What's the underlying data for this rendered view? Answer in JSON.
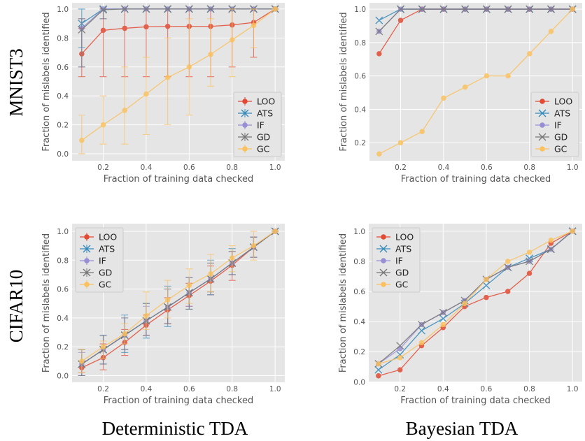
{
  "row_labels": [
    "MNIST3",
    "CIFAR10"
  ],
  "column_labels": [
    "Deterministic TDA",
    "Bayesian TDA"
  ],
  "series_styles": {
    "LOO": {
      "color": "#E24A33",
      "marker": "circle"
    },
    "ATS": {
      "color": "#348ABD",
      "marker": "x"
    },
    "IF": {
      "color": "#988ED5",
      "marker": "circle"
    },
    "GD": {
      "color": "#777777",
      "marker": "x"
    },
    "GC": {
      "color": "#FBC15E",
      "marker": "circle"
    }
  },
  "style": {
    "background": "#E5E5E5",
    "grid": "#FFFFFF"
  },
  "chart_data": [
    {
      "type": "line",
      "row": "MNIST3",
      "column": "Deterministic TDA",
      "xlabel": "Fraction of training data checked",
      "ylabel": "Fraction of mislabels identified",
      "xlim": [
        0.055,
        1.045
      ],
      "ylim": [
        -0.048,
        1.043
      ],
      "xticks": [
        0.2,
        0.4,
        0.6,
        0.8,
        1.0
      ],
      "xtick_labels": [
        "0.2",
        "0.4",
        "0.6",
        "0.8",
        "1.0"
      ],
      "yticks": [
        0.0,
        0.2,
        0.4,
        0.6,
        0.8,
        1.0
      ],
      "ytick_labels": [
        "0.0",
        "0.2",
        "0.4",
        "0.6",
        "0.8",
        "1.0"
      ],
      "grid": true,
      "legend": "lower right",
      "error_bars": true,
      "x": [
        0.1,
        0.2,
        0.3,
        0.4,
        0.5,
        0.6,
        0.7,
        0.8,
        0.9,
        1.0
      ],
      "series": [
        {
          "name": "LOO",
          "values": [
            0.69,
            0.853,
            0.867,
            0.877,
            0.88,
            0.88,
            0.88,
            0.89,
            0.907,
            1.0
          ],
          "lower": [
            0.533,
            0.533,
            0.533,
            0.533,
            0.533,
            0.533,
            0.533,
            0.6,
            0.667,
            1.0
          ],
          "upper": [
            0.867,
            1.0,
            1.0,
            1.0,
            1.0,
            1.0,
            1.0,
            1.0,
            1.0,
            1.0
          ]
        },
        {
          "name": "ATS",
          "values": [
            0.9,
            1.0,
            1.0,
            1.0,
            1.0,
            1.0,
            1.0,
            1.0,
            1.0,
            1.0
          ],
          "lower": [
            0.733,
            1.0,
            1.0,
            1.0,
            1.0,
            1.0,
            1.0,
            1.0,
            1.0,
            1.0
          ],
          "upper": [
            1.0,
            1.0,
            1.0,
            1.0,
            1.0,
            1.0,
            1.0,
            1.0,
            1.0,
            1.0
          ]
        },
        {
          "name": "IF",
          "values": [
            0.867,
            1.0,
            1.0,
            1.0,
            1.0,
            1.0,
            1.0,
            1.0,
            1.0,
            1.0
          ],
          "lower": [
            0.6,
            0.933,
            1.0,
            1.0,
            1.0,
            1.0,
            1.0,
            1.0,
            1.0,
            1.0
          ],
          "upper": [
            0.933,
            1.0,
            1.0,
            1.0,
            1.0,
            1.0,
            1.0,
            1.0,
            1.0,
            1.0
          ]
        },
        {
          "name": "GD",
          "values": [
            0.857,
            0.995,
            1.0,
            1.0,
            1.0,
            1.0,
            1.0,
            1.0,
            1.0,
            1.0
          ],
          "lower": [
            0.6,
            0.933,
            1.0,
            1.0,
            1.0,
            1.0,
            1.0,
            1.0,
            1.0,
            1.0
          ],
          "upper": [
            0.933,
            1.0,
            1.0,
            1.0,
            1.0,
            1.0,
            1.0,
            1.0,
            1.0,
            1.0
          ]
        },
        {
          "name": "GC",
          "values": [
            0.093,
            0.2,
            0.3,
            0.413,
            0.527,
            0.6,
            0.687,
            0.787,
            0.887,
            1.0
          ],
          "lower": [
            0.0,
            0.067,
            0.067,
            0.133,
            0.2,
            0.267,
            0.467,
            0.533,
            0.733,
            1.0
          ],
          "upper": [
            0.267,
            0.4,
            0.6,
            0.667,
            0.8,
            0.933,
            0.933,
            1.0,
            1.0,
            1.0
          ]
        }
      ]
    },
    {
      "type": "line",
      "row": "MNIST3",
      "column": "Bayesian TDA",
      "xlabel": "Fraction of training data checked",
      "ylabel": "Fraction of mislabels identified",
      "xlim": [
        0.055,
        1.045
      ],
      "ylim": [
        0.092,
        1.038
      ],
      "xticks": [
        0.2,
        0.4,
        0.6,
        0.8,
        1.0
      ],
      "xtick_labels": [
        "0.2",
        "0.4",
        "0.6",
        "0.8",
        "1.0"
      ],
      "yticks": [
        0.2,
        0.4,
        0.6,
        0.8,
        1.0
      ],
      "ytick_labels": [
        "0.2",
        "0.4",
        "0.6",
        "0.8",
        "1.0"
      ],
      "grid": true,
      "legend": "lower right",
      "error_bars": false,
      "x": [
        0.1,
        0.2,
        0.3,
        0.4,
        0.5,
        0.6,
        0.7,
        0.8,
        0.9,
        1.0
      ],
      "series": [
        {
          "name": "LOO",
          "values": [
            0.733,
            0.933,
            1.0,
            1.0,
            1.0,
            1.0,
            1.0,
            1.0,
            1.0,
            1.0
          ]
        },
        {
          "name": "ATS",
          "values": [
            0.933,
            1.0,
            1.0,
            1.0,
            1.0,
            1.0,
            1.0,
            1.0,
            1.0,
            1.0
          ]
        },
        {
          "name": "IF",
          "values": [
            0.867,
            1.0,
            1.0,
            1.0,
            1.0,
            1.0,
            1.0,
            1.0,
            1.0,
            1.0
          ]
        },
        {
          "name": "GD",
          "values": [
            0.867,
            1.0,
            1.0,
            1.0,
            1.0,
            1.0,
            1.0,
            1.0,
            1.0,
            1.0
          ]
        },
        {
          "name": "GC",
          "values": [
            0.133,
            0.2,
            0.267,
            0.467,
            0.533,
            0.6,
            0.6,
            0.733,
            0.867,
            1.0
          ]
        }
      ]
    },
    {
      "type": "line",
      "row": "CIFAR10",
      "column": "Deterministic TDA",
      "xlabel": "Fraction of training data checked",
      "ylabel": "Fraction of mislabels identified",
      "xlim": [
        0.055,
        1.045
      ],
      "ylim": [
        -0.046,
        1.053
      ],
      "xticks": [
        0.2,
        0.4,
        0.6,
        0.8,
        1.0
      ],
      "xtick_labels": [
        "0.2",
        "0.4",
        "0.6",
        "0.8",
        "1.0"
      ],
      "yticks": [
        0.0,
        0.2,
        0.4,
        0.6,
        0.8,
        1.0
      ],
      "ytick_labels": [
        "0.0",
        "0.2",
        "0.4",
        "0.6",
        "0.8",
        "1.0"
      ],
      "grid": true,
      "legend": "upper left",
      "error_bars": true,
      "x": [
        0.1,
        0.2,
        0.3,
        0.4,
        0.5,
        0.6,
        0.7,
        0.8,
        0.9,
        1.0
      ],
      "series": [
        {
          "name": "LOO",
          "values": [
            0.055,
            0.125,
            0.23,
            0.35,
            0.455,
            0.555,
            0.655,
            0.765,
            0.89,
            1.0
          ],
          "lower": [
            0.02,
            0.04,
            0.14,
            0.28,
            0.36,
            0.48,
            0.56,
            0.66,
            0.82,
            1.0
          ],
          "upper": [
            0.1,
            0.22,
            0.32,
            0.42,
            0.54,
            0.64,
            0.76,
            0.86,
            0.96,
            1.0
          ]
        },
        {
          "name": "ATS",
          "values": [
            0.08,
            0.18,
            0.28,
            0.38,
            0.475,
            0.575,
            0.67,
            0.78,
            0.89,
            1.0
          ],
          "lower": [
            0.0,
            0.08,
            0.16,
            0.26,
            0.34,
            0.46,
            0.56,
            0.7,
            0.82,
            1.0
          ],
          "upper": [
            0.18,
            0.28,
            0.42,
            0.5,
            0.62,
            0.68,
            0.8,
            0.88,
            0.96,
            1.0
          ]
        },
        {
          "name": "IF",
          "values": [
            0.08,
            0.18,
            0.28,
            0.38,
            0.475,
            0.575,
            0.67,
            0.78,
            0.89,
            1.0
          ],
          "lower": [
            0.0,
            0.08,
            0.18,
            0.28,
            0.36,
            0.48,
            0.58,
            0.7,
            0.82,
            1.0
          ],
          "upper": [
            0.16,
            0.28,
            0.4,
            0.48,
            0.6,
            0.68,
            0.78,
            0.86,
            0.96,
            1.0
          ]
        },
        {
          "name": "GD",
          "values": [
            0.08,
            0.18,
            0.28,
            0.38,
            0.475,
            0.575,
            0.67,
            0.78,
            0.89,
            1.0
          ],
          "lower": [
            0.0,
            0.08,
            0.18,
            0.28,
            0.36,
            0.46,
            0.58,
            0.7,
            0.82,
            1.0
          ],
          "upper": [
            0.18,
            0.28,
            0.4,
            0.5,
            0.6,
            0.68,
            0.78,
            0.86,
            0.96,
            1.0
          ]
        },
        {
          "name": "GC",
          "values": [
            0.1,
            0.2,
            0.29,
            0.415,
            0.525,
            0.625,
            0.705,
            0.815,
            0.9,
            1.0
          ],
          "lower": [
            0.02,
            0.12,
            0.22,
            0.32,
            0.4,
            0.5,
            0.58,
            0.72,
            0.8,
            1.0
          ],
          "upper": [
            0.18,
            0.24,
            0.36,
            0.58,
            0.66,
            0.74,
            0.84,
            0.9,
            1.0,
            1.0
          ]
        }
      ]
    },
    {
      "type": "line",
      "row": "CIFAR10",
      "column": "Bayesian TDA",
      "xlabel": "Fraction of training data checked",
      "ylabel": "Fraction of mislabels identified",
      "xlim": [
        0.055,
        1.045
      ],
      "ylim": [
        -0.003,
        1.05
      ],
      "xticks": [
        0.2,
        0.4,
        0.6,
        0.8,
        1.0
      ],
      "xtick_labels": [
        "0.2",
        "0.4",
        "0.6",
        "0.8",
        "1.0"
      ],
      "yticks": [
        0.0,
        0.2,
        0.4,
        0.6,
        0.8,
        1.0
      ],
      "ytick_labels": [
        "0.0",
        "0.2",
        "0.4",
        "0.6",
        "0.8",
        "1.0"
      ],
      "grid": true,
      "legend": "upper left",
      "error_bars": false,
      "x": [
        0.1,
        0.2,
        0.3,
        0.4,
        0.5,
        0.6,
        0.7,
        0.8,
        0.9,
        1.0
      ],
      "series": [
        {
          "name": "LOO",
          "values": [
            0.04,
            0.08,
            0.24,
            0.36,
            0.5,
            0.56,
            0.6,
            0.72,
            0.92,
            1.0
          ]
        },
        {
          "name": "ATS",
          "values": [
            0.08,
            0.18,
            0.34,
            0.42,
            0.52,
            0.64,
            0.76,
            0.82,
            0.88,
            1.0
          ]
        },
        {
          "name": "IF",
          "values": [
            0.12,
            0.22,
            0.38,
            0.46,
            0.54,
            0.68,
            0.76,
            0.8,
            0.88,
            1.0
          ]
        },
        {
          "name": "GD",
          "values": [
            0.12,
            0.24,
            0.38,
            0.46,
            0.54,
            0.68,
            0.76,
            0.8,
            0.88,
            1.0
          ]
        },
        {
          "name": "GC",
          "values": [
            0.12,
            0.16,
            0.26,
            0.38,
            0.52,
            0.68,
            0.8,
            0.86,
            0.94,
            1.0
          ]
        }
      ]
    }
  ]
}
